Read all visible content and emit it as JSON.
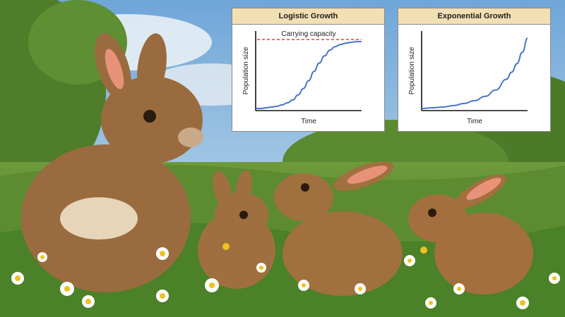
{
  "chart_data": [
    {
      "type": "line",
      "title": "Logistic Growth",
      "xlabel": "Time",
      "ylabel": "Population size",
      "annotation": "Carrying capacity",
      "carrying_capacity": 100,
      "xlim": [
        0,
        10
      ],
      "ylim": [
        0,
        112
      ],
      "x": [
        0,
        0.5,
        1,
        1.5,
        2,
        2.5,
        3,
        3.5,
        4,
        4.5,
        5,
        5.5,
        6,
        6.5,
        7,
        7.5,
        8,
        8.5,
        9,
        9.5,
        10
      ],
      "series": [
        {
          "values": [
            3,
            3,
            4,
            5,
            6,
            8,
            11,
            15,
            22,
            31,
            42,
            55,
            67,
            77,
            85,
            90,
            93,
            95,
            96,
            97,
            97
          ],
          "color": "#4a74c9"
        }
      ],
      "line_colors": {
        "carrying_capacity": "#e0443c"
      },
      "grid": false
    },
    {
      "type": "line",
      "title": "Exponential Growth",
      "xlabel": "Time",
      "ylabel": "Population size",
      "xlim": [
        0,
        10
      ],
      "ylim": [
        0,
        112
      ],
      "x": [
        0,
        1,
        2,
        3,
        4,
        5,
        6,
        7,
        8,
        8.5,
        9,
        9.5,
        10
      ],
      "series": [
        {
          "values": [
            3,
            4,
            5,
            7,
            10,
            14,
            20,
            29,
            44,
            54,
            66,
            82,
            102
          ],
          "color": "#4a74c9"
        }
      ],
      "grid": false
    }
  ]
}
